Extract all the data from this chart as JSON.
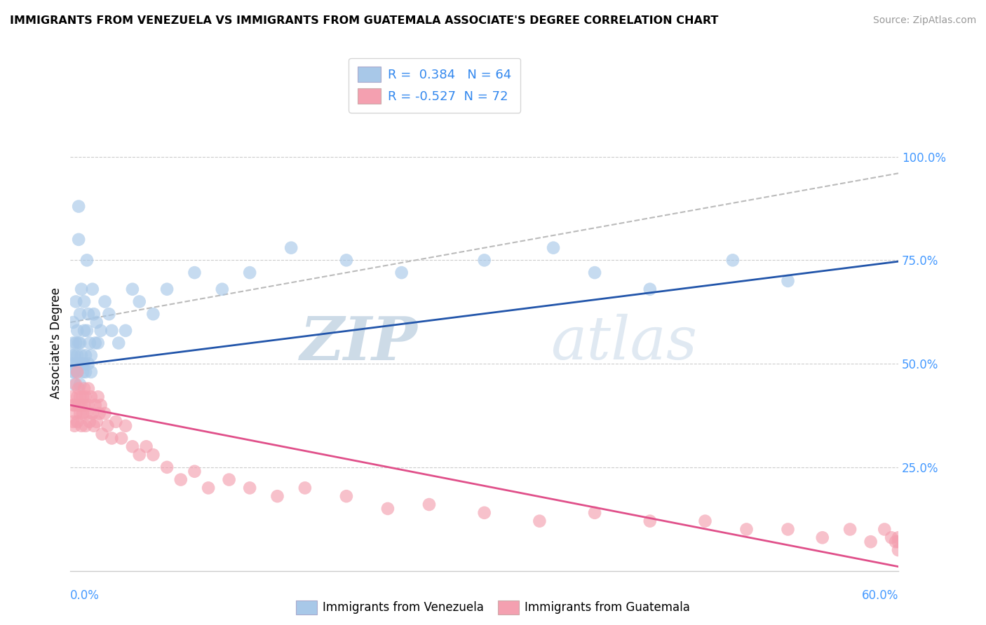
{
  "title": "IMMIGRANTS FROM VENEZUELA VS IMMIGRANTS FROM GUATEMALA ASSOCIATE'S DEGREE CORRELATION CHART",
  "source": "Source: ZipAtlas.com",
  "ylabel": "Associate's Degree",
  "y_ticks": [
    "100.0%",
    "75.0%",
    "50.0%",
    "25.0%"
  ],
  "y_tick_vals": [
    1.0,
    0.75,
    0.5,
    0.25
  ],
  "xlim": [
    0.0,
    0.6
  ],
  "ylim": [
    0.0,
    1.1
  ],
  "blue_color": "#A8C8E8",
  "pink_color": "#F4A0B0",
  "blue_line_color": "#2255AA",
  "pink_line_color": "#E0508A",
  "gray_dash_color": "#BBBBBB",
  "blue_R": 0.384,
  "blue_N": 64,
  "pink_R": -0.527,
  "pink_N": 72,
  "blue_intercept": 0.495,
  "blue_slope": 0.42,
  "blue_dash_intercept": 0.6,
  "blue_dash_slope": 0.6,
  "pink_intercept": 0.4,
  "pink_slope": -0.65,
  "blue_scatter_x": [
    0.001,
    0.001,
    0.002,
    0.002,
    0.002,
    0.003,
    0.003,
    0.003,
    0.004,
    0.004,
    0.004,
    0.005,
    0.005,
    0.005,
    0.005,
    0.006,
    0.006,
    0.006,
    0.007,
    0.007,
    0.007,
    0.008,
    0.008,
    0.009,
    0.009,
    0.01,
    0.01,
    0.01,
    0.011,
    0.011,
    0.012,
    0.012,
    0.013,
    0.013,
    0.014,
    0.015,
    0.015,
    0.016,
    0.017,
    0.018,
    0.019,
    0.02,
    0.022,
    0.025,
    0.028,
    0.03,
    0.035,
    0.04,
    0.045,
    0.05,
    0.06,
    0.07,
    0.09,
    0.11,
    0.13,
    0.16,
    0.2,
    0.24,
    0.3,
    0.35,
    0.38,
    0.42,
    0.48,
    0.52
  ],
  "blue_scatter_y": [
    0.5,
    0.52,
    0.48,
    0.55,
    0.6,
    0.52,
    0.48,
    0.45,
    0.55,
    0.65,
    0.5,
    0.5,
    0.52,
    0.58,
    0.48,
    0.88,
    0.8,
    0.55,
    0.55,
    0.62,
    0.45,
    0.52,
    0.68,
    0.5,
    0.48,
    0.58,
    0.65,
    0.5,
    0.52,
    0.48,
    0.75,
    0.58,
    0.62,
    0.5,
    0.55,
    0.52,
    0.48,
    0.68,
    0.62,
    0.55,
    0.6,
    0.55,
    0.58,
    0.65,
    0.62,
    0.58,
    0.55,
    0.58,
    0.68,
    0.65,
    0.62,
    0.68,
    0.72,
    0.68,
    0.72,
    0.78,
    0.75,
    0.72,
    0.75,
    0.78,
    0.72,
    0.68,
    0.75,
    0.7
  ],
  "pink_scatter_x": [
    0.001,
    0.002,
    0.002,
    0.003,
    0.003,
    0.004,
    0.004,
    0.005,
    0.005,
    0.005,
    0.006,
    0.006,
    0.007,
    0.007,
    0.008,
    0.008,
    0.009,
    0.009,
    0.01,
    0.01,
    0.011,
    0.011,
    0.012,
    0.013,
    0.013,
    0.014,
    0.015,
    0.016,
    0.017,
    0.018,
    0.019,
    0.02,
    0.021,
    0.022,
    0.023,
    0.025,
    0.027,
    0.03,
    0.033,
    0.037,
    0.04,
    0.045,
    0.05,
    0.055,
    0.06,
    0.07,
    0.08,
    0.09,
    0.1,
    0.115,
    0.13,
    0.15,
    0.17,
    0.2,
    0.23,
    0.26,
    0.3,
    0.34,
    0.38,
    0.42,
    0.46,
    0.49,
    0.52,
    0.545,
    0.565,
    0.58,
    0.59,
    0.595,
    0.598,
    0.6,
    0.6,
    0.6
  ],
  "pink_scatter_y": [
    0.42,
    0.4,
    0.36,
    0.4,
    0.35,
    0.45,
    0.38,
    0.42,
    0.36,
    0.48,
    0.4,
    0.44,
    0.38,
    0.42,
    0.35,
    0.4,
    0.42,
    0.38,
    0.44,
    0.4,
    0.35,
    0.42,
    0.38,
    0.4,
    0.44,
    0.36,
    0.42,
    0.38,
    0.35,
    0.4,
    0.36,
    0.42,
    0.38,
    0.4,
    0.33,
    0.38,
    0.35,
    0.32,
    0.36,
    0.32,
    0.35,
    0.3,
    0.28,
    0.3,
    0.28,
    0.25,
    0.22,
    0.24,
    0.2,
    0.22,
    0.2,
    0.18,
    0.2,
    0.18,
    0.15,
    0.16,
    0.14,
    0.12,
    0.14,
    0.12,
    0.12,
    0.1,
    0.1,
    0.08,
    0.1,
    0.07,
    0.1,
    0.08,
    0.07,
    0.05,
    0.07,
    0.08
  ],
  "watermark_zip": "ZIP",
  "watermark_atlas": "atlas",
  "watermark_color": "#C8D8E8"
}
